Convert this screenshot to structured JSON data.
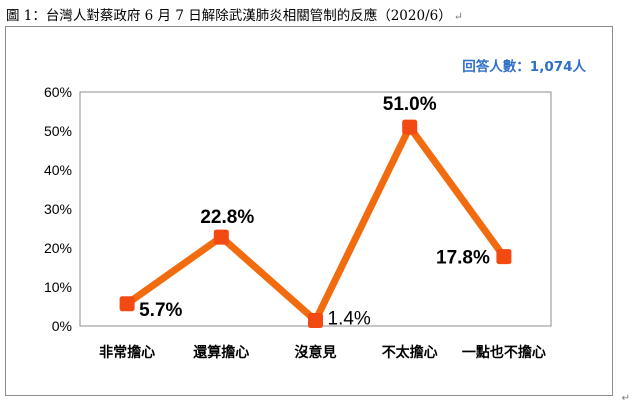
{
  "figure": {
    "title": "圖 1：台灣人對蔡政府 6 月 7 日解除武漢肺炎相關管制的反應（2020/6）",
    "title_mark": "↵",
    "corner_mark": "↵"
  },
  "chart_data": {
    "type": "line",
    "categories": [
      "非常擔心",
      "還算擔心",
      "沒意見",
      "不太擔心",
      "一點也不擔心"
    ],
    "series": [
      {
        "values": [
          5.7,
          22.8,
          1.4,
          51.0,
          17.8
        ]
      }
    ],
    "data_labels": [
      "5.7%",
      "22.8%",
      "1.4%",
      "51.0%",
      "17.8%"
    ],
    "y_ticks": [
      "0%",
      "10%",
      "20%",
      "30%",
      "40%",
      "50%",
      "60%"
    ],
    "ylim": [
      0,
      60
    ],
    "annotation": "回答人數：1,074人",
    "line_color": "#F26B0F",
    "marker_color": "#F24A10",
    "grid": false,
    "legend": "none"
  }
}
